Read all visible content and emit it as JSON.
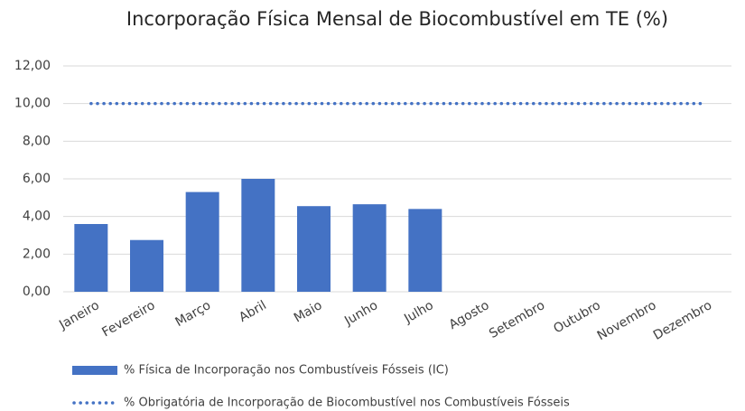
{
  "chart_data": {
    "type": "bar",
    "title": "Incorporação Física Mensal de Biocombustível em TE (%)",
    "categories": [
      "Janeiro",
      "Fevereiro",
      "Março",
      "Abril",
      "Maio",
      "Junho",
      "Julho",
      "Agosto",
      "Setembro",
      "Outubro",
      "Novembro",
      "Dezembro"
    ],
    "series": [
      {
        "name": "% Física de Incorporação nos Combustíveis Fósseis (IC)",
        "color": "#4472c4",
        "type": "bar",
        "values": [
          3.6,
          2.75,
          5.3,
          6.0,
          4.55,
          4.65,
          4.4,
          null,
          null,
          null,
          null,
          null
        ]
      },
      {
        "name": "% Obrigatória de Incorporação de Biocombustível nos Combustíveis Fósseis",
        "color": "#4472c4",
        "type": "line",
        "line_style": "dotted",
        "values": [
          10,
          10,
          10,
          10,
          10,
          10,
          10,
          10,
          10,
          10,
          10,
          10
        ]
      }
    ],
    "ylim": [
      0,
      12
    ],
    "yticks": [
      {
        "value": 0,
        "label": "0,00"
      },
      {
        "value": 2,
        "label": "2,00"
      },
      {
        "value": 4,
        "label": "4,00"
      },
      {
        "value": 6,
        "label": "6,00"
      },
      {
        "value": 8,
        "label": "8,00"
      },
      {
        "value": 10,
        "label": "10,00"
      },
      {
        "value": 12,
        "label": "12,00"
      }
    ],
    "grid": true,
    "legend": "bottom"
  }
}
